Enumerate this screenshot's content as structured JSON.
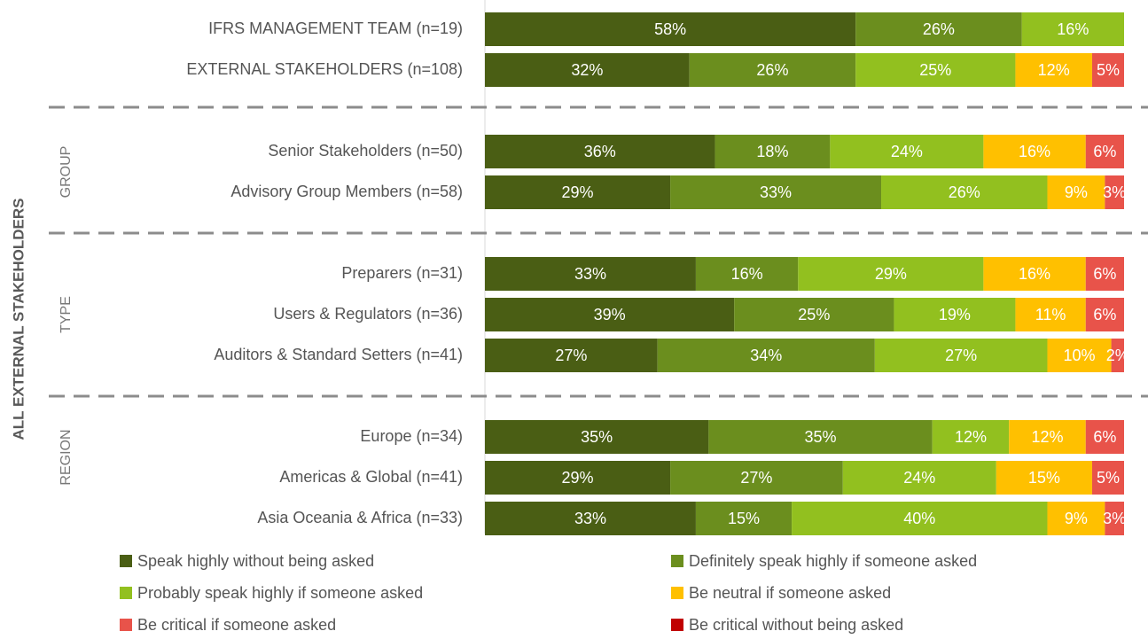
{
  "chart_data": {
    "type": "stacked-bar-horizontal",
    "side_label": "ALL EXTERNAL STAKEHOLDERS",
    "group_labels": [
      "GROUP",
      "TYPE",
      "REGION"
    ],
    "categories": [
      "IFRS MANAGEMENT TEAM (n=19)",
      "EXTERNAL STAKEHOLDERS (n=108)",
      "Senior Stakeholders (n=50)",
      "Advisory Group Members (n=58)",
      "Preparers (n=31)",
      "Users & Regulators (n=36)",
      "Auditors & Standard Setters (n=41)",
      "Europe (n=34)",
      "Americas & Global (n=41)",
      "Asia Oceania & Africa (n=33)"
    ],
    "series": [
      {
        "name": "Speak highly without being asked",
        "color": "#4a5e14",
        "values": [
          58,
          32,
          36,
          29,
          33,
          39,
          27,
          35,
          29,
          33
        ],
        "value_labels": [
          "58%",
          "32%",
          "36%",
          "29%",
          "33%",
          "39%",
          "27%",
          "35%",
          "29%",
          "33%"
        ]
      },
      {
        "name": "Definitely speak highly if someone asked",
        "color": "#6b8e1e",
        "values": [
          26,
          26,
          18,
          33,
          16,
          25,
          34,
          35,
          27,
          15
        ],
        "value_labels": [
          "26%",
          "26%",
          "18%",
          "33%",
          "16%",
          "25%",
          "34%",
          "35%",
          "27%",
          "15%"
        ]
      },
      {
        "name": "Probably speak highly if someone asked",
        "color": "#92c01f",
        "values": [
          16,
          25,
          24,
          26,
          29,
          19,
          27,
          12,
          24,
          40
        ],
        "value_labels": [
          "16%",
          "25%",
          "24%",
          "26%",
          "29%",
          "19%",
          "27%",
          "12%",
          "24%",
          "40%"
        ]
      },
      {
        "name": "Be neutral if someone asked",
        "color": "#ffc000",
        "values": [
          null,
          12,
          16,
          9,
          16,
          11,
          10,
          12,
          15,
          9
        ],
        "value_labels": [
          null,
          "12%",
          "16%",
          "9%",
          "16%",
          "11%",
          "10%",
          "12%",
          "15%",
          "9%"
        ]
      },
      {
        "name": "Be critical if someone asked",
        "color": "#e8534a",
        "values": [
          null,
          5,
          6,
          3,
          6,
          6,
          2,
          6,
          5,
          3
        ],
        "value_labels": [
          null,
          "5%",
          "6%",
          "3%",
          "6%",
          "6%",
          "2%",
          "6%",
          "5%",
          "3%"
        ]
      },
      {
        "name": "Be critical without being asked",
        "color": "#c00000",
        "values": [
          null,
          null,
          null,
          null,
          null,
          null,
          null,
          null,
          null,
          null
        ]
      }
    ]
  }
}
